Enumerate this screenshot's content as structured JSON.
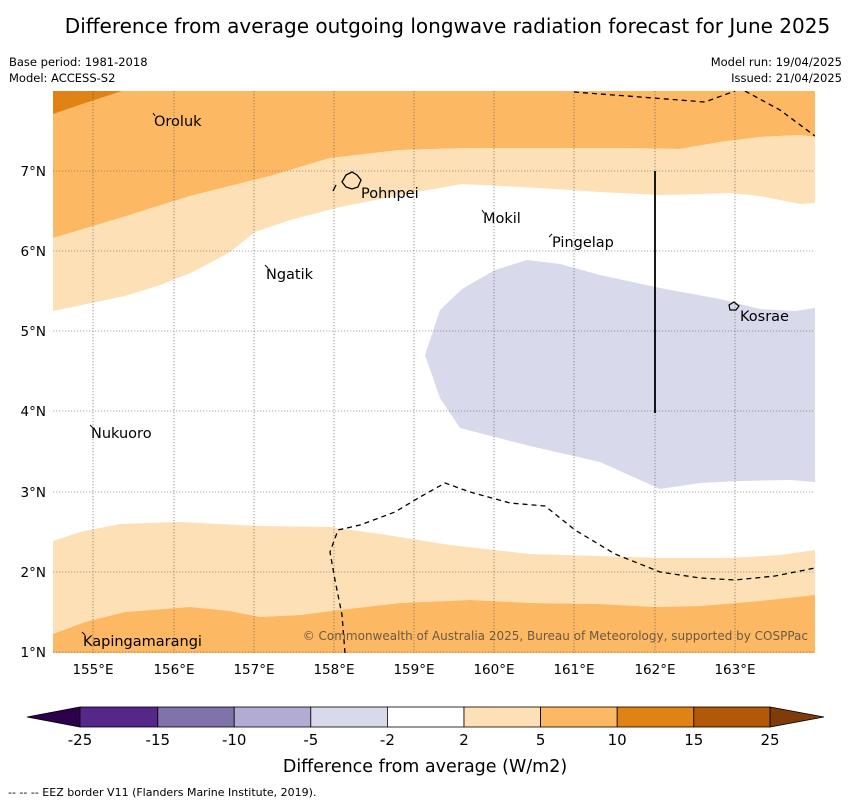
{
  "title": "Difference from average outgoing longwave radiation forecast for June 2025",
  "meta": {
    "base_period": "Base period: 1981-2018",
    "model": "Model: ACCESS-S2",
    "model_run": "Model run: 19/04/2025",
    "issued": "Issued: 21/04/2025"
  },
  "axes": {
    "lon_ticks": [
      "155°E",
      "156°E",
      "157°E",
      "158°E",
      "159°E",
      "160°E",
      "161°E",
      "162°E",
      "163°E"
    ],
    "lat_ticks": [
      "7°N",
      "6°N",
      "5°N",
      "4°N",
      "3°N",
      "2°N",
      "1°N"
    ]
  },
  "places": [
    {
      "name": "Oroluk",
      "lon": 155.8,
      "lat": 7.6
    },
    {
      "name": "Pohnpei",
      "lon": 158.2,
      "lat": 6.9
    },
    {
      "name": "Mokil",
      "lon": 159.9,
      "lat": 6.7
    },
    {
      "name": "Pingelap",
      "lon": 160.7,
      "lat": 6.2
    },
    {
      "name": "Ngatik",
      "lon": 157.3,
      "lat": 5.8
    },
    {
      "name": "Kosrae",
      "lon": 162.95,
      "lat": 5.3
    },
    {
      "name": "Nukuoro",
      "lon": 155.0,
      "lat": 3.9
    },
    {
      "name": "Kapingamarangi",
      "lon": 154.8,
      "lat": 1.1
    }
  ],
  "copyright": "© Commonwealth of Australia 2025, Bureau of Meteorology, supported by COSPPac",
  "colorbar": {
    "ticks": [
      "-25",
      "-15",
      "-10",
      "-5",
      "-2",
      "2",
      "5",
      "10",
      "15",
      "25"
    ],
    "colors": [
      "#542788",
      "#8073ac",
      "#b2abd2",
      "#d8daeb",
      "#ffffff",
      "#fee0b6",
      "#fdb863",
      "#e08214",
      "#b35806"
    ],
    "under_color": "#2d004b",
    "over_color": "#7f3b08",
    "title": "Difference from average (W/m2)"
  },
  "footer": "--  --  -- EEZ border V11 (Flanders Marine Institute, 2019)."
}
